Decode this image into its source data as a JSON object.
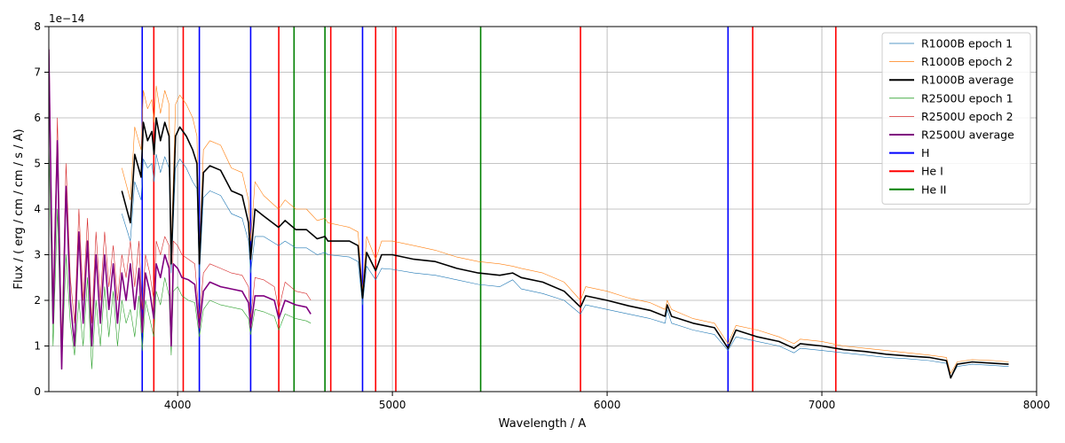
{
  "chart_data": {
    "type": "line",
    "title": "",
    "xlabel": "Wavelength / A",
    "ylabel": "Flux / ( erg / cm / cm / s / A)",
    "y_offset_label": "1e−14",
    "xlim": [
      3400,
      8000
    ],
    "ylim": [
      0,
      8
    ],
    "y_scale_factor": 1e-14,
    "grid": true,
    "legend_position": "top-right",
    "x_ticks": [
      4000,
      5000,
      6000,
      7000,
      8000
    ],
    "y_ticks": [
      0,
      1,
      2,
      3,
      4,
      5,
      6,
      7,
      8
    ],
    "series": [
      {
        "name": "R1000B epoch 1",
        "color": "#1f77b4",
        "linewidth": 0.6,
        "x": [
          3740,
          3780,
          3800,
          3830,
          3840,
          3860,
          3880,
          3890,
          3900,
          3920,
          3940,
          3960,
          3970,
          3990,
          4010,
          4040,
          4070,
          4090,
          4101,
          4120,
          4150,
          4200,
          4250,
          4300,
          4330,
          4340,
          4360,
          4400,
          4470,
          4500,
          4550,
          4600,
          4650,
          4686,
          4700,
          4800,
          4840,
          4861,
          4880,
          4922,
          4950,
          5000,
          5100,
          5200,
          5300,
          5400,
          5500,
          5560,
          5600,
          5700,
          5800,
          5876,
          5900,
          6000,
          6100,
          6200,
          6270,
          6280,
          6300,
          6400,
          6500,
          6563,
          6600,
          6700,
          6800,
          6870,
          6900,
          7000,
          7100,
          7200,
          7300,
          7400,
          7500,
          7580,
          7600,
          7630,
          7700,
          7800,
          7870
        ],
        "y": [
          3.9,
          3.3,
          4.6,
          4.2,
          5.1,
          4.9,
          5.0,
          4.6,
          5.2,
          4.8,
          5.15,
          4.9,
          2.6,
          4.9,
          5.1,
          4.9,
          4.6,
          4.45,
          2.5,
          4.25,
          4.4,
          4.3,
          3.9,
          3.8,
          3.3,
          2.6,
          3.4,
          3.4,
          3.2,
          3.3,
          3.15,
          3.15,
          3.0,
          3.05,
          3.0,
          2.95,
          2.85,
          1.9,
          2.75,
          2.45,
          2.7,
          2.68,
          2.6,
          2.55,
          2.45,
          2.35,
          2.3,
          2.45,
          2.25,
          2.15,
          2.0,
          1.7,
          1.9,
          1.8,
          1.7,
          1.6,
          1.5,
          1.8,
          1.5,
          1.35,
          1.25,
          0.9,
          1.2,
          1.1,
          1.0,
          0.85,
          0.95,
          0.9,
          0.85,
          0.8,
          0.75,
          0.72,
          0.68,
          0.62,
          0.3,
          0.55,
          0.6,
          0.57,
          0.55
        ]
      },
      {
        "name": "R1000B epoch 2",
        "color": "#ff7f0e",
        "linewidth": 0.6,
        "x": [
          3740,
          3780,
          3800,
          3830,
          3840,
          3860,
          3880,
          3890,
          3900,
          3920,
          3940,
          3960,
          3970,
          3990,
          4010,
          4040,
          4070,
          4090,
          4101,
          4120,
          4150,
          4200,
          4250,
          4300,
          4330,
          4340,
          4360,
          4400,
          4470,
          4500,
          4550,
          4600,
          4650,
          4686,
          4700,
          4800,
          4840,
          4861,
          4880,
          4922,
          4950,
          5000,
          5100,
          5200,
          5300,
          5400,
          5500,
          5560,
          5600,
          5700,
          5800,
          5876,
          5900,
          6000,
          6100,
          6200,
          6270,
          6280,
          6300,
          6400,
          6500,
          6563,
          6600,
          6700,
          6800,
          6870,
          6900,
          7000,
          7100,
          7200,
          7300,
          7400,
          7500,
          7580,
          7600,
          7630,
          7700,
          7800,
          7870
        ],
        "y": [
          4.9,
          4.2,
          5.8,
          5.3,
          6.6,
          6.2,
          6.4,
          5.9,
          6.7,
          6.1,
          6.6,
          6.3,
          3.1,
          6.3,
          6.5,
          6.3,
          6.0,
          5.6,
          3.0,
          5.3,
          5.5,
          5.4,
          4.9,
          4.8,
          4.2,
          3.3,
          4.6,
          4.3,
          4.0,
          4.2,
          4.0,
          4.0,
          3.75,
          3.8,
          3.7,
          3.6,
          3.5,
          2.2,
          3.4,
          2.9,
          3.3,
          3.3,
          3.2,
          3.1,
          2.95,
          2.85,
          2.8,
          2.75,
          2.7,
          2.6,
          2.4,
          2.0,
          2.3,
          2.2,
          2.05,
          1.95,
          1.8,
          2.0,
          1.8,
          1.6,
          1.5,
          1.05,
          1.45,
          1.35,
          1.2,
          1.05,
          1.15,
          1.1,
          1.0,
          0.95,
          0.9,
          0.85,
          0.8,
          0.75,
          0.4,
          0.65,
          0.7,
          0.68,
          0.65
        ]
      },
      {
        "name": "R1000B average",
        "color": "#000000",
        "linewidth": 1.6,
        "x": [
          3740,
          3780,
          3800,
          3830,
          3840,
          3860,
          3880,
          3890,
          3900,
          3920,
          3940,
          3960,
          3970,
          3990,
          4010,
          4040,
          4070,
          4090,
          4101,
          4120,
          4150,
          4200,
          4250,
          4300,
          4330,
          4340,
          4360,
          4400,
          4470,
          4500,
          4550,
          4600,
          4650,
          4686,
          4700,
          4800,
          4840,
          4861,
          4880,
          4922,
          4950,
          5000,
          5100,
          5200,
          5300,
          5400,
          5500,
          5560,
          5600,
          5700,
          5800,
          5876,
          5900,
          6000,
          6100,
          6200,
          6270,
          6280,
          6300,
          6400,
          6500,
          6563,
          6600,
          6700,
          6800,
          6870,
          6900,
          7000,
          7100,
          7200,
          7300,
          7400,
          7500,
          7580,
          7600,
          7630,
          7700,
          7800,
          7870
        ],
        "y": [
          4.4,
          3.7,
          5.2,
          4.7,
          5.9,
          5.5,
          5.7,
          5.2,
          6.0,
          5.5,
          5.9,
          5.6,
          2.8,
          5.6,
          5.8,
          5.6,
          5.3,
          5.0,
          2.8,
          4.8,
          4.95,
          4.85,
          4.4,
          4.3,
          3.7,
          2.9,
          4.0,
          3.85,
          3.6,
          3.75,
          3.55,
          3.55,
          3.35,
          3.4,
          3.3,
          3.3,
          3.2,
          2.05,
          3.05,
          2.65,
          3.0,
          3.0,
          2.9,
          2.85,
          2.7,
          2.6,
          2.55,
          2.6,
          2.5,
          2.4,
          2.2,
          1.85,
          2.1,
          2.0,
          1.88,
          1.78,
          1.65,
          1.9,
          1.65,
          1.5,
          1.4,
          0.95,
          1.35,
          1.2,
          1.1,
          0.95,
          1.05,
          1.0,
          0.92,
          0.88,
          0.82,
          0.78,
          0.75,
          0.68,
          0.3,
          0.6,
          0.65,
          0.62,
          0.6
        ]
      },
      {
        "name": "R2500U epoch 1",
        "color": "#2ca02c",
        "linewidth": 0.6,
        "x": [
          3400,
          3420,
          3440,
          3460,
          3480,
          3500,
          3520,
          3540,
          3560,
          3580,
          3600,
          3620,
          3640,
          3660,
          3680,
          3700,
          3720,
          3740,
          3760,
          3780,
          3800,
          3820,
          3835,
          3850,
          3870,
          3889,
          3900,
          3920,
          3940,
          3960,
          3970,
          3980,
          4000,
          4020,
          4050,
          4080,
          4101,
          4120,
          4150,
          4200,
          4250,
          4300,
          4330,
          4340,
          4360,
          4400,
          4450,
          4471,
          4500,
          4550,
          4600,
          4620
        ],
        "y": [
          5.5,
          1.0,
          4.0,
          0.5,
          3.0,
          1.5,
          0.8,
          2.0,
          1.0,
          2.5,
          0.5,
          2.0,
          1.0,
          2.3,
          1.2,
          2.2,
          1.0,
          2.0,
          1.5,
          1.8,
          1.2,
          2.1,
          0.9,
          2.0,
          1.6,
          1.2,
          2.2,
          1.9,
          2.5,
          2.1,
          0.8,
          2.2,
          2.3,
          2.1,
          2.0,
          1.95,
          1.2,
          1.8,
          2.0,
          1.9,
          1.85,
          1.8,
          1.6,
          1.25,
          1.8,
          1.75,
          1.65,
          1.35,
          1.7,
          1.6,
          1.55,
          1.5
        ]
      },
      {
        "name": "R2500U epoch 2",
        "color": "#d62728",
        "linewidth": 0.6,
        "x": [
          3400,
          3420,
          3440,
          3460,
          3480,
          3500,
          3520,
          3540,
          3560,
          3580,
          3600,
          3620,
          3640,
          3660,
          3680,
          3700,
          3720,
          3740,
          3760,
          3780,
          3800,
          3820,
          3835,
          3850,
          3870,
          3889,
          3900,
          3920,
          3940,
          3960,
          3970,
          3980,
          4000,
          4020,
          4050,
          4080,
          4101,
          4120,
          4150,
          4200,
          4250,
          4300,
          4330,
          4340,
          4360,
          4400,
          4450,
          4471,
          4500,
          4550,
          4600,
          4620
        ],
        "y": [
          7.8,
          2.0,
          6.0,
          1.0,
          5.0,
          2.5,
          1.5,
          4.0,
          2.0,
          3.8,
          1.5,
          3.5,
          2.0,
          3.5,
          2.3,
          3.2,
          2.0,
          3.0,
          2.5,
          3.3,
          2.3,
          3.3,
          1.8,
          3.0,
          2.6,
          2.0,
          3.3,
          3.0,
          3.4,
          3.2,
          1.3,
          3.3,
          3.2,
          3.0,
          2.9,
          2.8,
          1.6,
          2.6,
          2.8,
          2.7,
          2.6,
          2.55,
          2.3,
          1.6,
          2.5,
          2.45,
          2.3,
          1.8,
          2.4,
          2.2,
          2.15,
          2.0
        ]
      },
      {
        "name": "R2500U average",
        "color": "#800080",
        "linewidth": 1.6,
        "x": [
          3400,
          3420,
          3440,
          3460,
          3480,
          3500,
          3520,
          3540,
          3560,
          3580,
          3600,
          3620,
          3640,
          3660,
          3680,
          3700,
          3720,
          3740,
          3760,
          3780,
          3800,
          3820,
          3835,
          3850,
          3870,
          3889,
          3900,
          3920,
          3940,
          3960,
          3970,
          3980,
          4000,
          4020,
          4050,
          4080,
          4101,
          4120,
          4150,
          4200,
          4250,
          4300,
          4330,
          4340,
          4360,
          4400,
          4450,
          4471,
          4500,
          4550,
          4600,
          4620
        ],
        "y": [
          7.5,
          1.5,
          5.5,
          0.5,
          4.5,
          2.0,
          1.0,
          3.5,
          1.5,
          3.3,
          1.0,
          3.0,
          1.5,
          3.0,
          1.8,
          2.8,
          1.5,
          2.6,
          2.0,
          2.8,
          1.8,
          2.7,
          1.3,
          2.6,
          2.2,
          1.6,
          2.8,
          2.5,
          3.0,
          2.7,
          1.0,
          2.8,
          2.7,
          2.5,
          2.45,
          2.35,
          1.4,
          2.2,
          2.4,
          2.3,
          2.25,
          2.2,
          1.95,
          1.4,
          2.1,
          2.1,
          2.0,
          1.6,
          2.0,
          1.9,
          1.85,
          1.7
        ]
      }
    ],
    "vertical_lines": [
      {
        "name": "H",
        "color": "#0000ff",
        "x": [
          3835,
          4101,
          4340,
          4861,
          6563
        ]
      },
      {
        "name": "He I",
        "color": "#ff0000",
        "x": [
          3889,
          4026,
          4471,
          4713,
          4922,
          5016,
          5876,
          6678,
          7065
        ]
      },
      {
        "name": "He II",
        "color": "#008000",
        "x": [
          4542,
          4686,
          5411
        ]
      }
    ],
    "legend": [
      "R1000B epoch 1",
      "R1000B epoch 2",
      "R1000B average",
      "R2500U epoch 1",
      "R2500U epoch 2",
      "R2500U average",
      "H",
      "He I",
      "He II"
    ]
  }
}
